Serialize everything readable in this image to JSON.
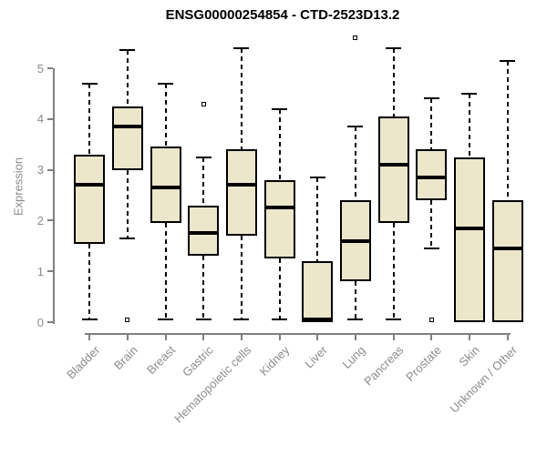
{
  "title": "ENSG00000254854 - CTD-2523D13.2",
  "colors": {
    "background": "#ffffff",
    "box_fill": "#ece6cb",
    "box_border": "#000000",
    "median": "#000000",
    "whisker": "#000000",
    "axis_line": "#808080",
    "tick_text": "#8c8c8c",
    "title_text": "#000000"
  },
  "chart_data": {
    "type": "boxplot",
    "title": "ENSG00000254854 - CTD-2523D13.2",
    "xlabel": "",
    "ylabel": "Expression",
    "ylim": [
      0,
      5.7
    ],
    "y_ticks": [
      0,
      1,
      2,
      3,
      4,
      5
    ],
    "grid": false,
    "legend": false,
    "categories": [
      "Bladder",
      "Brain",
      "Breast",
      "Gastric",
      "Hematopoietic cells",
      "Kidney",
      "Liver",
      "Lung",
      "Pancreas",
      "Prostate",
      "Skin",
      "Unknown / Other"
    ],
    "boxes": [
      {
        "category": "Bladder",
        "whisker_low": 0.05,
        "q1": 1.55,
        "median": 2.7,
        "q3": 3.3,
        "whisker_high": 4.7,
        "outliers": []
      },
      {
        "category": "Brain",
        "whisker_low": 1.65,
        "q1": 3.0,
        "median": 3.85,
        "q3": 4.25,
        "whisker_high": 5.35,
        "outliers": [
          0.05
        ]
      },
      {
        "category": "Breast",
        "whisker_low": 0.05,
        "q1": 1.95,
        "median": 2.65,
        "q3": 3.45,
        "whisker_high": 4.7,
        "outliers": []
      },
      {
        "category": "Gastric",
        "whisker_low": 0.05,
        "q1": 1.3,
        "median": 1.75,
        "q3": 2.3,
        "whisker_high": 3.25,
        "outliers": [
          4.3
        ]
      },
      {
        "category": "Hematopoietic cells",
        "whisker_low": 0.05,
        "q1": 1.7,
        "median": 2.7,
        "q3": 3.4,
        "whisker_high": 5.4,
        "outliers": []
      },
      {
        "category": "Kidney",
        "whisker_low": 0.05,
        "q1": 1.25,
        "median": 2.25,
        "q3": 2.8,
        "whisker_high": 4.2,
        "outliers": []
      },
      {
        "category": "Liver",
        "whisker_low": 0.0,
        "q1": 0.0,
        "median": 0.05,
        "q3": 1.2,
        "whisker_high": 2.85,
        "outliers": []
      },
      {
        "category": "Lung",
        "whisker_low": 0.05,
        "q1": 0.8,
        "median": 1.6,
        "q3": 2.4,
        "whisker_high": 3.85,
        "outliers": [
          5.6
        ]
      },
      {
        "category": "Pancreas",
        "whisker_low": 0.05,
        "q1": 1.95,
        "median": 3.1,
        "q3": 4.05,
        "whisker_high": 5.4,
        "outliers": []
      },
      {
        "category": "Prostate",
        "whisker_low": 1.45,
        "q1": 2.4,
        "median": 2.85,
        "q3": 3.4,
        "whisker_high": 4.4,
        "outliers": [
          0.05
        ]
      },
      {
        "category": "Skin",
        "whisker_low": 0.0,
        "q1": 0.0,
        "median": 1.85,
        "q3": 3.25,
        "whisker_high": 4.5,
        "outliers": []
      },
      {
        "category": "Unknown / Other",
        "whisker_low": 0.0,
        "q1": 0.0,
        "median": 1.45,
        "q3": 2.4,
        "whisker_high": 5.15,
        "outliers": []
      }
    ]
  }
}
